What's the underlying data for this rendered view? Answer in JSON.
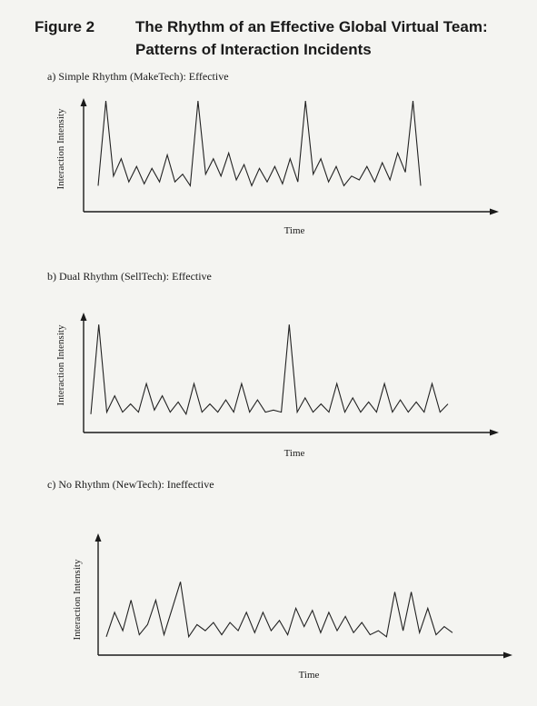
{
  "figure": {
    "label": "Figure 2",
    "title_line1": "The Rhythm of an Effective Global Virtual Team:",
    "title_line2": "Patterns of Interaction Incidents"
  },
  "chart_data": [
    {
      "type": "line",
      "title": "a)  Simple Rhythm (MakeTech): Effective",
      "xlabel": "Time",
      "ylabel": "Interaction Intensity",
      "xlim": [
        0,
        56
      ],
      "ylim": [
        0,
        100
      ],
      "grid": false,
      "values": [
        10,
        98,
        20,
        38,
        14,
        30,
        12,
        28,
        14,
        42,
        14,
        22,
        10,
        98,
        22,
        38,
        20,
        44,
        16,
        32,
        10,
        28,
        14,
        30,
        12,
        38,
        14,
        98,
        22,
        38,
        14,
        30,
        10,
        20,
        16,
        30,
        14,
        34,
        16,
        44,
        24,
        98,
        10
      ]
    },
    {
      "type": "line",
      "title": "b)  Dual Rhythm (SellTech): Effective",
      "xlabel": "Time",
      "ylabel": "Interaction Intensity",
      "xlim": [
        0,
        60
      ],
      "ylim": [
        0,
        100
      ],
      "grid": false,
      "values": [
        10,
        98,
        12,
        28,
        12,
        20,
        12,
        40,
        14,
        28,
        12,
        22,
        10,
        40,
        12,
        20,
        12,
        24,
        12,
        40,
        12,
        24,
        12,
        14,
        12,
        98,
        12,
        26,
        12,
        20,
        12,
        40,
        12,
        26,
        12,
        22,
        12,
        40,
        12,
        24,
        12,
        22,
        12,
        40,
        12,
        20
      ]
    },
    {
      "type": "line",
      "title": "c)  No Rhythm (NewTech): Ineffective",
      "xlabel": "Time",
      "ylabel": "Interaction Intensity",
      "xlim": [
        0,
        60
      ],
      "ylim": [
        0,
        100
      ],
      "grid": false,
      "values": [
        10,
        34,
        16,
        46,
        12,
        22,
        46,
        12,
        38,
        64,
        10,
        22,
        16,
        24,
        12,
        24,
        16,
        34,
        14,
        34,
        16,
        26,
        12,
        38,
        20,
        36,
        14,
        34,
        16,
        30,
        14,
        24,
        12,
        16,
        10,
        54,
        16,
        54,
        14,
        38,
        12,
        20,
        14
      ]
    }
  ]
}
